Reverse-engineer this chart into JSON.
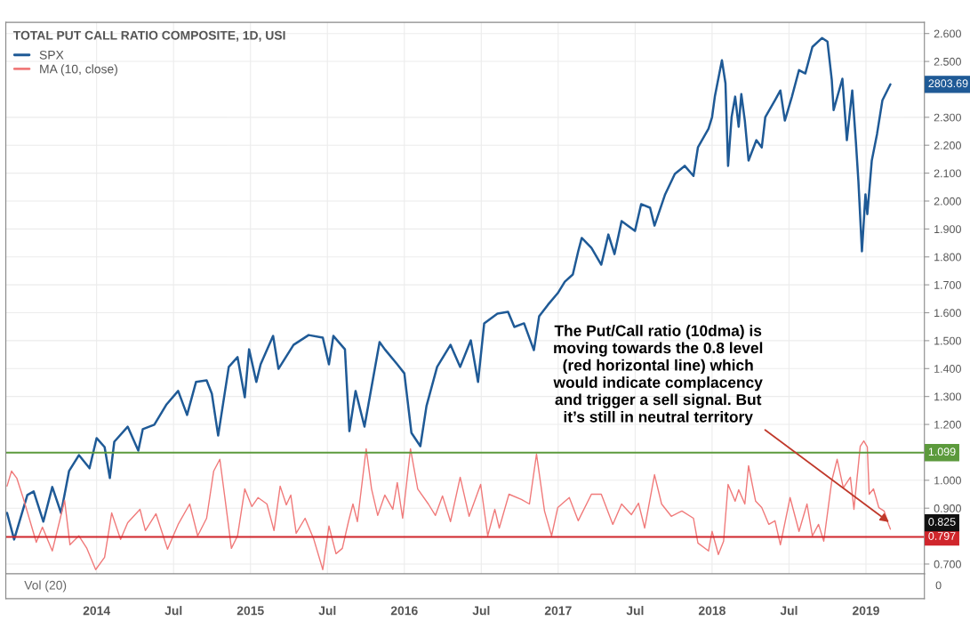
{
  "chart_data": [
    {
      "type": "line",
      "title": "TOTAL PUT CALL RATIO COMPOSITE, 1D, USI",
      "series": [
        {
          "name": "SPX",
          "color": "#1f5a96",
          "x": [
            2013.418,
            2013.464,
            2013.55,
            2013.591,
            2013.654,
            2013.712,
            2013.769,
            2013.821,
            2013.885,
            2013.954,
            2014.0,
            2014.052,
            2014.086,
            2014.115,
            2014.202,
            2014.271,
            2014.3,
            2014.375,
            2014.455,
            2014.53,
            2014.588,
            2014.646,
            2014.715,
            2014.749,
            2014.79,
            2014.859,
            2014.916,
            2014.963,
            2014.991,
            2015.038,
            2015.066,
            2015.147,
            2015.182,
            2015.28,
            2015.378,
            2015.47,
            2015.51,
            2015.539,
            2015.614,
            2015.643,
            2015.683,
            2015.741,
            2015.839,
            2015.873,
            2015.954,
            2016.0,
            2016.046,
            2016.104,
            2016.144,
            2016.213,
            2016.3,
            2016.363,
            2016.432,
            2016.479,
            2016.519,
            2016.605,
            2016.674,
            2016.715,
            2016.778,
            2016.842,
            2016.876,
            2016.934,
            2016.997,
            2017.043,
            2017.095,
            2017.13,
            2017.153,
            2017.216,
            2017.28,
            2017.326,
            2017.366,
            2017.412,
            2017.499,
            2017.539,
            2017.597,
            2017.626,
            2017.695,
            2017.758,
            2017.822,
            2017.879,
            2017.908,
            2017.977,
            2018.0,
            2018.018,
            2018.064,
            2018.087,
            2018.104,
            2018.127,
            2018.15,
            2018.173,
            2018.19,
            2018.213,
            2018.237,
            2018.288,
            2018.323,
            2018.346,
            2018.409,
            2018.444,
            2018.473,
            2018.519,
            2018.565,
            2018.606,
            2018.652,
            2018.715,
            2018.75,
            2018.778,
            2018.79,
            2018.847,
            2018.876,
            2018.911,
            2018.934,
            2018.951,
            2018.974,
            2018.997,
            2019.009,
            2019.038,
            2019.072,
            2019.107,
            2019.159
          ],
          "values": [
            0.883,
            0.788,
            0.947,
            0.96,
            0.852,
            0.976,
            0.883,
            1.033,
            1.09,
            1.043,
            1.151,
            1.119,
            1.008,
            1.138,
            1.192,
            1.106,
            1.183,
            1.199,
            1.272,
            1.32,
            1.234,
            1.352,
            1.358,
            1.31,
            1.16,
            1.406,
            1.441,
            1.297,
            1.469,
            1.352,
            1.415,
            1.517,
            1.399,
            1.485,
            1.52,
            1.511,
            1.415,
            1.517,
            1.469,
            1.176,
            1.32,
            1.192,
            1.495,
            1.469,
            1.415,
            1.383,
            1.17,
            1.122,
            1.266,
            1.406,
            1.485,
            1.406,
            1.501,
            1.352,
            1.562,
            1.597,
            1.603,
            1.549,
            1.562,
            1.466,
            1.587,
            1.629,
            1.67,
            1.711,
            1.737,
            1.82,
            1.868,
            1.832,
            1.772,
            1.88,
            1.81,
            1.928,
            1.893,
            1.989,
            1.976,
            1.912,
            2.024,
            2.097,
            2.126,
            2.09,
            2.192,
            2.259,
            2.301,
            2.374,
            2.504,
            2.422,
            2.126,
            2.301,
            2.374,
            2.266,
            2.383,
            2.288,
            2.145,
            2.218,
            2.192,
            2.301,
            2.361,
            2.396,
            2.288,
            2.374,
            2.469,
            2.457,
            2.552,
            2.584,
            2.571,
            2.434,
            2.326,
            2.438,
            2.218,
            2.396,
            2.218,
            2.071,
            1.82,
            2.024,
            1.953,
            2.145,
            2.24,
            2.361,
            2.418
          ]
        },
        {
          "name": "MA (10, close)",
          "color": "#f07a7a",
          "x": [
            2013.418,
            2013.447,
            2013.481,
            2013.522,
            2013.562,
            2013.608,
            2013.648,
            2013.712,
            2013.764,
            2013.792,
            2013.827,
            2013.885,
            2013.937,
            2013.994,
            2014.052,
            2014.098,
            2014.156,
            2014.202,
            2014.282,
            2014.317,
            2014.386,
            2014.461,
            2014.53,
            2014.605,
            2014.657,
            2014.715,
            2014.761,
            2014.801,
            2014.836,
            2014.876,
            2014.916,
            2014.963,
            2015.009,
            2015.049,
            2015.107,
            2015.153,
            2015.193,
            2015.233,
            2015.262,
            2015.297,
            2015.355,
            2015.412,
            2015.47,
            2015.51,
            2015.556,
            2015.597,
            2015.637,
            2015.666,
            2015.695,
            2015.752,
            2015.787,
            2015.827,
            2015.873,
            2015.925,
            2015.954,
            2015.989,
            2016.04,
            2016.087,
            2016.156,
            2016.202,
            2016.248,
            2016.3,
            2016.363,
            2016.421,
            2016.496,
            2016.542,
            2016.588,
            2016.617,
            2016.68,
            2016.761,
            2016.813,
            2016.859,
            2016.911,
            2016.957,
            2016.997,
            2017.072,
            2017.13,
            2017.216,
            2017.28,
            2017.355,
            2017.412,
            2017.476,
            2017.522,
            2017.562,
            2017.626,
            2017.672,
            2017.735,
            2017.804,
            2017.879,
            2017.908,
            2017.977,
            2018.0,
            2018.041,
            2018.075,
            2018.104,
            2018.15,
            2018.173,
            2018.213,
            2018.237,
            2018.283,
            2018.323,
            2018.369,
            2018.409,
            2018.444,
            2018.507,
            2018.565,
            2018.617,
            2018.652,
            2018.692,
            2018.726,
            2018.778,
            2018.813,
            2018.853,
            2018.899,
            2018.922,
            2018.963,
            2018.986,
            2019.009,
            2019.021,
            2019.049,
            2019.084,
            2019.118,
            2019.147,
            2019.159
          ],
          "values": [
            0.979,
            1.033,
            1.008,
            0.938,
            0.864,
            0.778,
            0.832,
            0.747,
            0.864,
            0.928,
            0.769,
            0.801,
            0.756,
            0.68,
            0.724,
            0.883,
            0.788,
            0.848,
            0.896,
            0.82,
            0.88,
            0.753,
            0.842,
            0.915,
            0.801,
            0.864,
            1.033,
            1.075,
            0.928,
            0.756,
            0.801,
            0.969,
            0.906,
            0.938,
            0.915,
            0.82,
            0.979,
            0.912,
            0.947,
            0.81,
            0.864,
            0.788,
            0.68,
            0.836,
            0.737,
            0.756,
            0.852,
            0.915,
            0.852,
            1.113,
            0.969,
            0.874,
            0.947,
            0.896,
            0.992,
            0.864,
            1.113,
            0.969,
            0.915,
            0.874,
            0.944,
            0.852,
            1.011,
            0.871,
            0.985,
            0.801,
            0.896,
            0.829,
            0.95,
            0.931,
            0.915,
            1.094,
            0.89,
            0.801,
            0.902,
            0.938,
            0.855,
            0.95,
            0.95,
            0.842,
            0.915,
            0.877,
            0.918,
            0.829,
            1.02,
            0.915,
            0.871,
            0.89,
            0.864,
            0.775,
            0.747,
            0.817,
            0.734,
            0.782,
            0.985,
            0.925,
            0.966,
            0.915,
            1.052,
            0.925,
            0.902,
            0.842,
            0.855,
            0.769,
            0.938,
            0.817,
            0.915,
            0.801,
            0.842,
            0.782,
            0.998,
            1.075,
            0.973,
            1.011,
            0.896,
            1.122,
            1.141,
            1.119,
            0.95,
            0.969,
            0.902,
            0.89,
            0.842,
            0.825
          ]
        }
      ],
      "xlim": [
        2013.41,
        2019.38
      ],
      "ylim": [
        0.665,
        2.64
      ],
      "yticks": [
        {
          "value": 0.7,
          "label": "0.700"
        },
        {
          "value": 0.9,
          "label": "0.900"
        },
        {
          "value": 1.0,
          "label": "1.000"
        },
        {
          "value": 1.2,
          "label": "1.200"
        },
        {
          "value": 1.3,
          "label": "1.300"
        },
        {
          "value": 1.4,
          "label": "1.400"
        },
        {
          "value": 1.5,
          "label": "1.500"
        },
        {
          "value": 1.6,
          "label": "1.600"
        },
        {
          "value": 1.7,
          "label": "1.700"
        },
        {
          "value": 1.8,
          "label": "1.800"
        },
        {
          "value": 1.9,
          "label": "1.900"
        },
        {
          "value": 2.0,
          "label": "2.000"
        },
        {
          "value": 2.1,
          "label": "2.100"
        },
        {
          "value": 2.2,
          "label": "2.200"
        },
        {
          "value": 2.3,
          "label": "2.300"
        },
        {
          "value": 2.5,
          "label": "2.500"
        },
        {
          "value": 2.6,
          "label": "2.600"
        }
      ],
      "xticks": [
        {
          "value": 2014,
          "label": "2014"
        },
        {
          "value": 2014.5,
          "label": "Jul"
        },
        {
          "value": 2015,
          "label": "2015"
        },
        {
          "value": 2015.5,
          "label": "Jul"
        },
        {
          "value": 2016,
          "label": "2016"
        },
        {
          "value": 2016.5,
          "label": "Jul"
        },
        {
          "value": 2017,
          "label": "2017"
        },
        {
          "value": 2017.5,
          "label": "Jul"
        },
        {
          "value": 2018,
          "label": "2018"
        },
        {
          "value": 2018.5,
          "label": "Jul"
        },
        {
          "value": 2019,
          "label": "2019"
        }
      ],
      "ref_lines": [
        {
          "axis": "y",
          "value": 1.099,
          "label": "1.099",
          "color": "#5c9a3c"
        },
        {
          "axis": "y",
          "value": 0.797,
          "label": "0.797",
          "color": "#d0262c"
        }
      ],
      "annotations": [
        {
          "text": "The Put/Call ratio (10dma) is\nmoving towards the 0.8 level\n(red horizontal line) which\nwould indicate complacency\nand trigger a sell signal. But\nit’s still in neutral territory",
          "x": 2019.15,
          "y": 0.85
        },
        "2803.69",
        "0.825"
      ],
      "grid": true,
      "legend": "top left"
    },
    {
      "type": "other",
      "title": "Vol (20)",
      "annotations": [
        "0"
      ]
    }
  ]
}
